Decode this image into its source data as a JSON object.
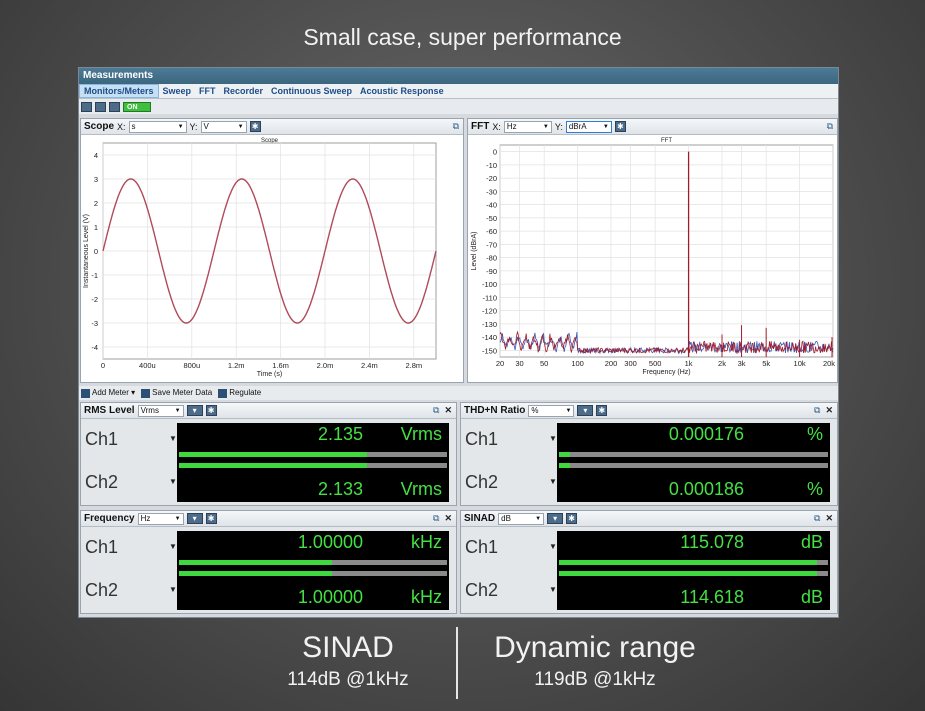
{
  "headline": "Small case, super performance",
  "window": {
    "title": "Measurements"
  },
  "menu": [
    "Monitors/Meters",
    "Sweep",
    "FFT",
    "Recorder",
    "Continuous Sweep",
    "Acoustic Response"
  ],
  "toolbar": {
    "on_label": "ON"
  },
  "scope": {
    "title": "Scope",
    "x_label": "X:",
    "x_value": "s",
    "y_label": "Y:",
    "y_value": "V",
    "chart_data": {
      "type": "line",
      "title": "Scope",
      "xlabel": "Time (s)",
      "ylabel": "Instantaneous Level (V)",
      "xlim": [
        0,
        0.003
      ],
      "ylim": [
        -4.5,
        4.5
      ],
      "x_ticks": [
        "0",
        "400u",
        "800u",
        "1.2m",
        "1.6m",
        "2.0m",
        "2.4m",
        "2.8m"
      ],
      "y_ticks": [
        "4",
        "3",
        "2",
        "1",
        "0",
        "-1",
        "-2",
        "-3",
        "-4"
      ],
      "series": [
        {
          "color": "#b04a5a",
          "amplitude": 3.0,
          "frequency_hz": 1000,
          "phase": "sine"
        }
      ],
      "grid": true
    }
  },
  "fft": {
    "title": "FFT",
    "x_label": "X:",
    "x_value": "Hz",
    "y_label": "Y:",
    "y_value": "dBrA",
    "chart_data": {
      "type": "line",
      "title": "FFT",
      "xlabel": "Frequency (Hz)",
      "ylabel": "Level (dBrA)",
      "xscale": "log",
      "xlim": [
        20,
        20000
      ],
      "ylim": [
        -155,
        5
      ],
      "x_ticks": [
        "20",
        "30",
        "50",
        "100",
        "200",
        "300",
        "500",
        "1k",
        "2k",
        "3k",
        "5k",
        "10k",
        "20k"
      ],
      "y_ticks": [
        "0",
        "-10",
        "-20",
        "-30",
        "-40",
        "-50",
        "-60",
        "-70",
        "-80",
        "-90",
        "-100",
        "-110",
        "-120",
        "-130",
        "-140",
        "-150"
      ],
      "fundamental": {
        "x": 1000,
        "y": 0
      },
      "harmonics": [
        {
          "x": 2000,
          "y": -138
        },
        {
          "x": 3000,
          "y": -131
        },
        {
          "x": 5000,
          "y": -133
        },
        {
          "x": 10000,
          "y": -142
        },
        {
          "x": 20000,
          "y": -140
        }
      ],
      "noise_floor": -150,
      "series": [
        {
          "color": "#a01c2c"
        },
        {
          "color": "#3a57b0"
        }
      ],
      "grid": true
    }
  },
  "meter_toolbar": {
    "add": "Add Meter",
    "save": "Save Meter Data",
    "regulate": "Regulate"
  },
  "meters": [
    {
      "title": "RMS Level",
      "unit_select": "Vrms",
      "ch1": {
        "label": "Ch1",
        "value": "2.135",
        "unit": "Vrms",
        "bar": 0.7,
        "peak": 0.7
      },
      "ch2": {
        "label": "Ch2",
        "value": "2.133",
        "unit": "Vrms",
        "bar": 0.7,
        "peak": 0.7
      }
    },
    {
      "title": "THD+N Ratio",
      "unit_select": "%",
      "ch1": {
        "label": "Ch1",
        "value": "0.000176",
        "unit": "%",
        "bar": 0.04,
        "peak": 0.04
      },
      "ch2": {
        "label": "Ch2",
        "value": "0.000186",
        "unit": "%",
        "bar": 0.04,
        "peak": 0.04
      }
    },
    {
      "title": "Frequency",
      "unit_select": "Hz",
      "ch1": {
        "label": "Ch1",
        "value": "1.00000",
        "unit": "kHz",
        "bar": 0.57,
        "peak": 0.93
      },
      "ch2": {
        "label": "Ch2",
        "value": "1.00000",
        "unit": "kHz",
        "bar": 0.57,
        "peak": 0.93
      }
    },
    {
      "title": "SINAD",
      "unit_select": "dB",
      "ch1": {
        "label": "Ch1",
        "value": "115.078",
        "unit": "dB",
        "bar": 0.96,
        "peak": 0.96
      },
      "ch2": {
        "label": "Ch2",
        "value": "114.618",
        "unit": "dB",
        "bar": 0.96,
        "peak": 0.96
      }
    }
  ],
  "footer": {
    "left_title": "SINAD",
    "left_sub": "114dB @1kHz",
    "right_title": "Dynamic range",
    "right_sub": "119dB @1kHz"
  }
}
